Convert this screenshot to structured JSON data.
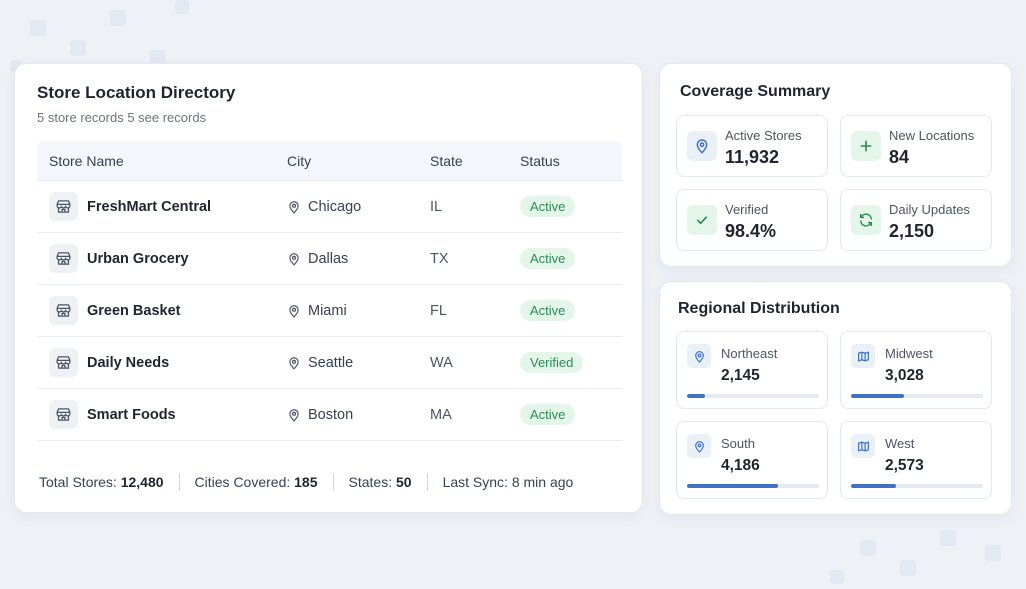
{
  "colors": {
    "accent": "#3f72c4",
    "success_bg": "#e4f5ea",
    "success_text": "#2e8b57",
    "icon_blue": "#3f72c4",
    "icon_green": "#2e8b57"
  },
  "directory": {
    "title": "Store Location Directory",
    "subtitle": "5 store records 5 see records",
    "columns": {
      "name": "Store Name",
      "city": "City",
      "state": "State",
      "status": "Status"
    },
    "rows": [
      {
        "name": "FreshMart Central",
        "city": "Chicago",
        "state": "IL",
        "status": "Active",
        "icon": "store-icon",
        "city_icon": "map-pin-icon"
      },
      {
        "name": "Urban Grocery",
        "city": "Dallas",
        "state": "TX",
        "status": "Active",
        "icon": "store-icon",
        "city_icon": "map-pin-icon"
      },
      {
        "name": "Green Basket",
        "city": "Miami",
        "state": "FL",
        "status": "Active",
        "icon": "store-icon",
        "city_icon": "map-pin-icon"
      },
      {
        "name": "Daily Needs",
        "city": "Seattle",
        "state": "WA",
        "status": "Verified",
        "icon": "store-icon",
        "city_icon": "map-pin-icon"
      },
      {
        "name": "Smart Foods",
        "city": "Boston",
        "state": "MA",
        "status": "Active",
        "icon": "store-icon",
        "city_icon": "map-pin-icon"
      }
    ],
    "footer": {
      "total_label": "Total Stores:",
      "total_value": "12,480",
      "cities_label": "Cities Covered:",
      "cities_value": "185",
      "states_label": "States:",
      "states_value": "50",
      "sync_label": "Last Sync:",
      "sync_value": "8 min ago"
    }
  },
  "coverage": {
    "title": "Coverage Summary",
    "stats": [
      {
        "label": "Active Stores",
        "value": "11,932",
        "icon": "map-pin-icon"
      },
      {
        "label": "New Locations",
        "value": "84",
        "icon": "plus-icon"
      },
      {
        "label": "Verified",
        "value": "98.4%",
        "icon": "check-icon"
      },
      {
        "label": "Daily Updates",
        "value": "2,150",
        "icon": "refresh-icon"
      }
    ]
  },
  "regional": {
    "title": "Regional Distribution",
    "regions": [
      {
        "label": "Northeast",
        "value": "2,145",
        "icon": "map-pin-icon",
        "progress": 0.14
      },
      {
        "label": "Midwest",
        "value": "3,028",
        "icon": "map-icon",
        "progress": 0.4
      },
      {
        "label": "South",
        "value": "4,186",
        "icon": "map-pin-icon",
        "progress": 0.69
      },
      {
        "label": "West",
        "value": "2,573",
        "icon": "map-icon",
        "progress": 0.34
      }
    ]
  }
}
